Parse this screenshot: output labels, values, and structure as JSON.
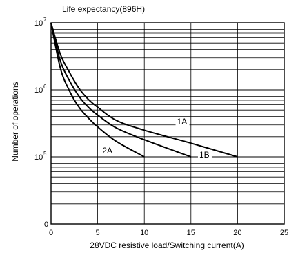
{
  "chart_data": {
    "type": "line",
    "title": "Life expectancy(896H)",
    "xlabel": "28VDC resistive load/Switching current(A)",
    "ylabel": "Number of operations",
    "xlim": [
      0,
      25
    ],
    "x_ticks": [
      0,
      5,
      10,
      15,
      20,
      25
    ],
    "x_tick_labels": [
      "0",
      "5",
      "10",
      "15",
      "20",
      "25"
    ],
    "y_scale": "log",
    "ylim": [
      10000,
      10000000
    ],
    "y_tick_labels": [
      {
        "value": 10000,
        "base": "0",
        "exp": ""
      },
      {
        "value": 100000,
        "base": "10",
        "exp": "5"
      },
      {
        "value": 1000000,
        "base": "10",
        "exp": "6"
      },
      {
        "value": 10000000,
        "base": "10",
        "exp": "7"
      }
    ],
    "grid": true,
    "series": [
      {
        "name": "1A",
        "x": [
          0,
          1,
          2,
          3,
          4,
          5,
          7,
          10,
          15,
          20
        ],
        "y": [
          10000000,
          3400000,
          1800000,
          1050000,
          720000,
          550000,
          350000,
          250000,
          160000,
          100000
        ]
      },
      {
        "name": "1B",
        "x": [
          0,
          1,
          2,
          3,
          4,
          5,
          7,
          10,
          15
        ],
        "y": [
          10000000,
          2700000,
          1350000,
          800000,
          550000,
          420000,
          270000,
          180000,
          100000
        ]
      },
      {
        "name": "2A",
        "x": [
          0,
          1,
          2,
          3,
          4,
          5,
          7,
          10
        ],
        "y": [
          10000000,
          2100000,
          950000,
          550000,
          380000,
          280000,
          170000,
          100000
        ]
      }
    ],
    "annotations": [
      {
        "text": "1A",
        "series": "1A"
      },
      {
        "text": "1B",
        "series": "1B"
      },
      {
        "text": "2A",
        "series": "2A"
      }
    ]
  }
}
